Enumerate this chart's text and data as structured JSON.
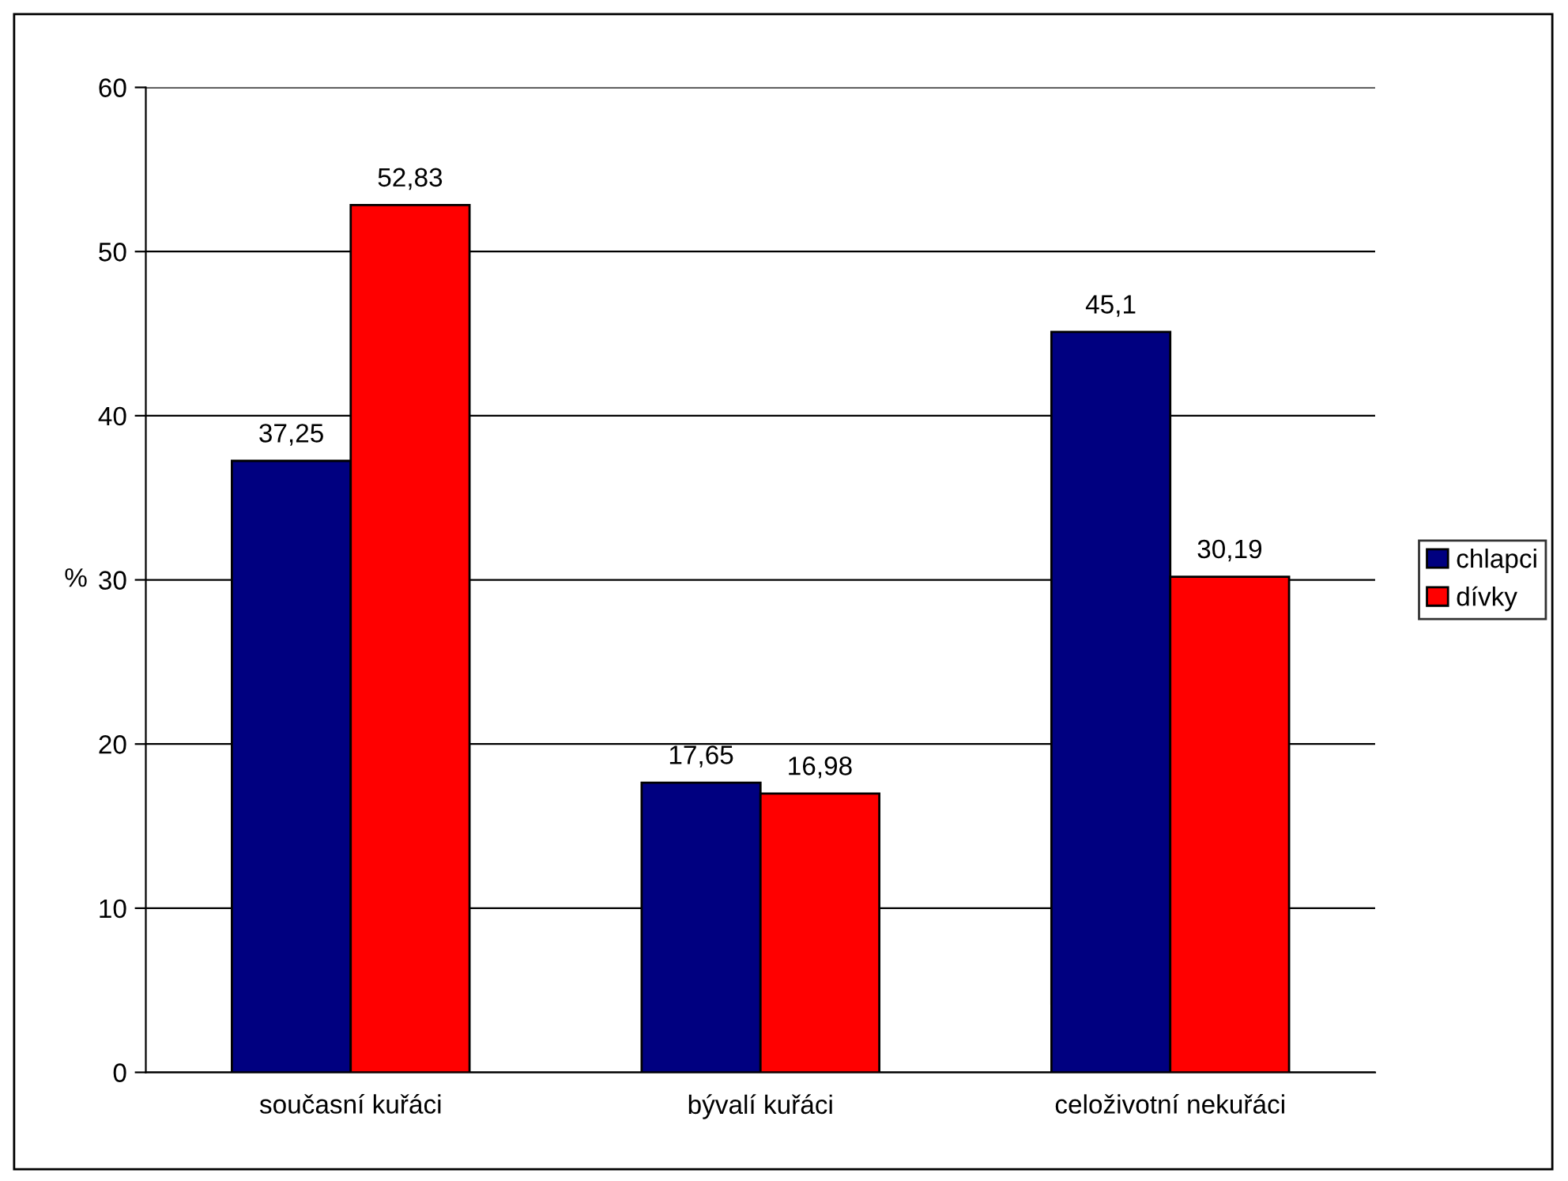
{
  "chart_data": {
    "type": "bar",
    "ylabel": "%",
    "categories": [
      "současní kuřáci",
      "bývalí kuřáci",
      "celoživotní nekuřáci"
    ],
    "series": [
      {
        "name": "chlapci",
        "color": "#000080",
        "values": [
          37.25,
          17.65,
          45.1
        ],
        "value_labels": [
          "37,25",
          "17,65",
          "45,1"
        ]
      },
      {
        "name": "dívky",
        "color": "#ff0000",
        "values": [
          52.83,
          16.98,
          30.19
        ],
        "value_labels": [
          "52,83",
          "16,98",
          "30,19"
        ]
      }
    ],
    "ylim": [
      0,
      60
    ],
    "yticks": [
      0,
      10,
      20,
      30,
      40,
      50,
      60
    ],
    "grid": "y",
    "legend": "right"
  }
}
